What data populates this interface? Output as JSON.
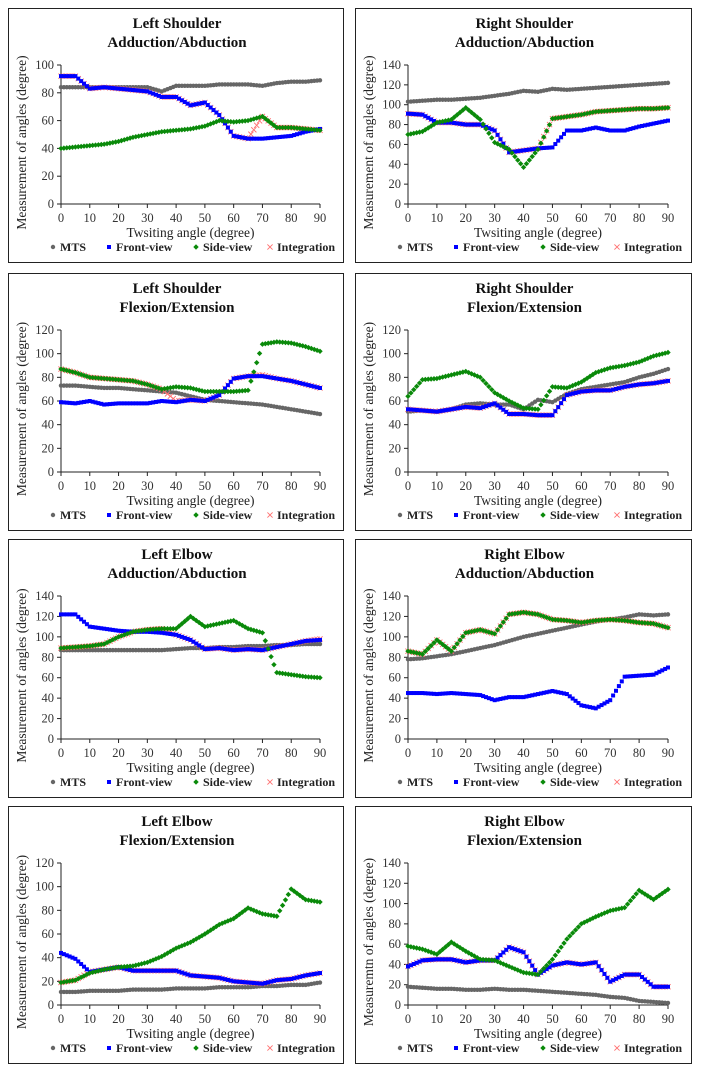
{
  "chart_data": [
    {
      "type": "scatter",
      "title": [
        "Left Shoulder",
        "Adduction/Abduction"
      ],
      "xlabel": "Twsiting angle (degree)",
      "ylabel": "Measurement of angles (degree)",
      "xlim": [
        0,
        90
      ],
      "ylim": [
        0,
        100
      ],
      "ystep": 20,
      "legend": "bottom",
      "x": [
        0,
        5,
        10,
        15,
        20,
        25,
        30,
        35,
        40,
        45,
        50,
        55,
        60,
        65,
        70,
        75,
        80,
        85,
        90
      ],
      "series": [
        {
          "name": "MTS",
          "values": [
            84,
            84,
            84,
            84,
            84,
            84,
            84,
            81,
            85,
            85,
            85,
            86,
            86,
            86,
            85,
            87,
            88,
            88,
            89
          ]
        },
        {
          "name": "Front-view",
          "values": [
            92,
            92,
            83,
            84,
            83,
            82,
            81,
            77,
            77,
            71,
            73,
            64,
            49,
            47,
            47,
            48,
            49,
            52,
            54
          ]
        },
        {
          "name": "Side-view",
          "values": [
            40,
            41,
            42,
            43,
            45,
            48,
            50,
            52,
            53,
            54,
            56,
            60,
            59,
            60,
            63,
            55,
            55,
            54,
            53
          ]
        },
        {
          "name": "Integration",
          "values": [
            92,
            92,
            83,
            84,
            83,
            82,
            81,
            77,
            77,
            71,
            73,
            64,
            49,
            47,
            63,
            55,
            55,
            54,
            53
          ]
        }
      ]
    },
    {
      "type": "scatter",
      "title": [
        "Right Shoulder",
        "Adduction/Abduction"
      ],
      "xlabel": "Twsiting angle (degree)",
      "ylabel": "Measurement of angles (degree)",
      "xlim": [
        0,
        90
      ],
      "ylim": [
        0,
        140
      ],
      "ystep": 20,
      "legend": "bottom",
      "x": [
        0,
        5,
        10,
        15,
        20,
        25,
        30,
        35,
        40,
        45,
        50,
        55,
        60,
        65,
        70,
        75,
        80,
        85,
        90
      ],
      "series": [
        {
          "name": "MTS",
          "values": [
            103,
            104,
            105,
            105,
            106,
            107,
            109,
            111,
            114,
            113,
            116,
            115,
            116,
            117,
            118,
            119,
            120,
            121,
            122
          ]
        },
        {
          "name": "Front-view",
          "values": [
            91,
            90,
            82,
            82,
            80,
            80,
            74,
            52,
            54,
            56,
            57,
            74,
            74,
            77,
            74,
            74,
            78,
            81,
            84
          ]
        },
        {
          "name": "Side-view",
          "values": [
            70,
            73,
            82,
            85,
            97,
            85,
            62,
            55,
            37,
            55,
            86,
            88,
            90,
            93,
            94,
            95,
            96,
            96,
            97
          ]
        },
        {
          "name": "Integration",
          "values": [
            91,
            90,
            82,
            82,
            80,
            80,
            74,
            52,
            54,
            56,
            86,
            88,
            90,
            93,
            94,
            95,
            96,
            96,
            97
          ]
        }
      ]
    },
    {
      "type": "scatter",
      "title": [
        "Left Shoulder",
        "Flexion/Extension"
      ],
      "xlabel": "Twsiting angle (degree)",
      "ylabel": "Measurement of angles (degree)",
      "xlim": [
        0,
        90
      ],
      "ylim": [
        0,
        120
      ],
      "ystep": 20,
      "legend": "bottom",
      "x": [
        0,
        5,
        10,
        15,
        20,
        25,
        30,
        35,
        40,
        45,
        50,
        55,
        60,
        65,
        70,
        75,
        80,
        85,
        90
      ],
      "series": [
        {
          "name": "MTS",
          "values": [
            73,
            73,
            72,
            71,
            71,
            70,
            69,
            68,
            67,
            64,
            61,
            60,
            59,
            58,
            57,
            55,
            53,
            51,
            49
          ]
        },
        {
          "name": "Front-view",
          "values": [
            59,
            58,
            60,
            57,
            58,
            58,
            58,
            60,
            59,
            61,
            60,
            65,
            79,
            81,
            81,
            79,
            77,
            74,
            71
          ]
        },
        {
          "name": "Side-view",
          "values": [
            87,
            84,
            80,
            79,
            78,
            77,
            74,
            70,
            72,
            71,
            68,
            68,
            68,
            69,
            108,
            110,
            109,
            106,
            102
          ]
        },
        {
          "name": "Integration",
          "values": [
            87,
            84,
            80,
            79,
            78,
            77,
            74,
            70,
            60,
            61,
            60,
            65,
            79,
            81,
            82,
            79,
            77,
            74,
            71
          ]
        }
      ]
    },
    {
      "type": "scatter",
      "title": [
        "Right Shoulder",
        "Flexion/Extension"
      ],
      "xlabel": "Twsiting angle (degree)",
      "ylabel": "Measurement of angles (degree)",
      "xlim": [
        0,
        90
      ],
      "ylim": [
        0,
        120
      ],
      "ystep": 20,
      "legend": "bottom",
      "x": [
        0,
        5,
        10,
        15,
        20,
        25,
        30,
        35,
        40,
        45,
        50,
        55,
        60,
        65,
        70,
        75,
        80,
        85,
        90
      ],
      "series": [
        {
          "name": "MTS",
          "values": [
            51,
            52,
            51,
            53,
            57,
            58,
            57,
            57,
            53,
            61,
            59,
            66,
            70,
            72,
            74,
            76,
            80,
            83,
            87
          ]
        },
        {
          "name": "Front-view",
          "values": [
            53,
            52,
            51,
            53,
            55,
            54,
            58,
            49,
            49,
            48,
            48,
            65,
            68,
            69,
            69,
            72,
            74,
            75,
            77
          ]
        },
        {
          "name": "Side-view",
          "values": [
            64,
            78,
            79,
            82,
            85,
            80,
            67,
            60,
            54,
            53,
            72,
            71,
            76,
            84,
            88,
            90,
            93,
            98,
            101
          ]
        },
        {
          "name": "Integration",
          "values": [
            53,
            52,
            51,
            53,
            55,
            54,
            58,
            49,
            49,
            48,
            48,
            65,
            68,
            69,
            69,
            72,
            74,
            75,
            77
          ]
        }
      ]
    },
    {
      "type": "scatter",
      "title": [
        "Left Elbow",
        "Adduction/Abduction"
      ],
      "xlabel": "Twsiting angle (degree)",
      "ylabel": "Measurement of angles (degree)",
      "xlim": [
        0,
        90
      ],
      "ylim": [
        0,
        140
      ],
      "ystep": 20,
      "legend": "bottom",
      "x": [
        0,
        5,
        10,
        15,
        20,
        25,
        30,
        35,
        40,
        45,
        50,
        55,
        60,
        65,
        70,
        75,
        80,
        85,
        90
      ],
      "series": [
        {
          "name": "MTS",
          "values": [
            87,
            87,
            87,
            87,
            87,
            87,
            87,
            87,
            88,
            89,
            89,
            90,
            90,
            91,
            91,
            92,
            92,
            93,
            93
          ]
        },
        {
          "name": "Front-view",
          "values": [
            122,
            122,
            110,
            108,
            106,
            105,
            105,
            104,
            102,
            97,
            88,
            89,
            87,
            88,
            87,
            90,
            93,
            96,
            97
          ]
        },
        {
          "name": "Side-view",
          "values": [
            89,
            90,
            91,
            93,
            100,
            105,
            107,
            108,
            108,
            120,
            110,
            113,
            116,
            108,
            104,
            65,
            63,
            61,
            60
          ]
        },
        {
          "name": "Integration",
          "values": [
            89,
            90,
            91,
            93,
            100,
            105,
            107,
            108,
            102,
            97,
            88,
            89,
            87,
            88,
            87,
            90,
            93,
            96,
            98
          ]
        }
      ]
    },
    {
      "type": "scatter",
      "title": [
        "Right Elbow",
        "Adduction/Abduction"
      ],
      "xlabel": "Twsiting angle (degree)",
      "ylabel": "Measurement of angles (degree)",
      "xlim": [
        0,
        90
      ],
      "ylim": [
        0,
        140
      ],
      "ystep": 20,
      "legend": "bottom",
      "x": [
        0,
        5,
        10,
        15,
        20,
        25,
        30,
        35,
        40,
        45,
        50,
        55,
        60,
        65,
        70,
        75,
        80,
        85,
        90
      ],
      "series": [
        {
          "name": "MTS",
          "values": [
            78,
            79,
            81,
            83,
            86,
            89,
            92,
            96,
            100,
            103,
            106,
            109,
            112,
            115,
            117,
            119,
            122,
            121,
            122
          ]
        },
        {
          "name": "Front-view",
          "values": [
            45,
            45,
            44,
            45,
            44,
            43,
            38,
            41,
            41,
            44,
            47,
            44,
            33,
            30,
            38,
            61,
            62,
            63,
            70
          ]
        },
        {
          "name": "Side-view",
          "values": [
            86,
            83,
            97,
            86,
            104,
            107,
            103,
            122,
            124,
            122,
            117,
            116,
            114,
            116,
            117,
            116,
            114,
            113,
            109
          ]
        },
        {
          "name": "Integration",
          "values": [
            86,
            83,
            97,
            86,
            104,
            107,
            103,
            122,
            124,
            122,
            117,
            116,
            114,
            116,
            117,
            116,
            114,
            113,
            109
          ]
        }
      ]
    },
    {
      "type": "scatter",
      "title": [
        "Left Elbow",
        "Flexion/Extension"
      ],
      "xlabel": "Twsiting angle (degree)",
      "ylabel": "Measurement of angles (degree)",
      "xlim": [
        0,
        90
      ],
      "ylim": [
        0,
        120
      ],
      "ystep": 20,
      "legend": "bottom",
      "x": [
        0,
        5,
        10,
        15,
        20,
        25,
        30,
        35,
        40,
        45,
        50,
        55,
        60,
        65,
        70,
        75,
        80,
        85,
        90
      ],
      "series": [
        {
          "name": "MTS",
          "values": [
            11,
            11,
            12,
            12,
            12,
            13,
            13,
            13,
            14,
            14,
            14,
            15,
            15,
            15,
            16,
            16,
            17,
            17,
            19
          ]
        },
        {
          "name": "Front-view",
          "values": [
            44,
            39,
            28,
            30,
            32,
            29,
            29,
            29,
            29,
            25,
            24,
            23,
            20,
            19,
            18,
            21,
            22,
            25,
            27
          ]
        },
        {
          "name": "Side-view",
          "values": [
            19,
            21,
            27,
            30,
            32,
            33,
            36,
            41,
            48,
            53,
            60,
            68,
            73,
            82,
            77,
            75,
            98,
            89,
            87
          ]
        },
        {
          "name": "Integration",
          "values": [
            19,
            21,
            28,
            30,
            32,
            29,
            29,
            29,
            29,
            25,
            24,
            23,
            20,
            19,
            18,
            21,
            22,
            25,
            27
          ]
        }
      ]
    },
    {
      "type": "scatter",
      "title": [
        "Right Elbow",
        "Flexion/Extension"
      ],
      "xlabel": "Twsiting angle (degree)",
      "ylabel": "Measuremtn of angles (degree)",
      "xlim": [
        0,
        90
      ],
      "ylim": [
        0,
        140
      ],
      "ystep": 20,
      "legend": "bottom",
      "x": [
        0,
        5,
        10,
        15,
        20,
        25,
        30,
        35,
        40,
        45,
        50,
        55,
        60,
        65,
        70,
        75,
        80,
        85,
        90
      ],
      "series": [
        {
          "name": "MTS",
          "values": [
            18,
            17,
            16,
            16,
            15,
            15,
            16,
            15,
            15,
            14,
            13,
            12,
            11,
            10,
            8,
            7,
            4,
            3,
            2
          ]
        },
        {
          "name": "Front-view",
          "values": [
            38,
            44,
            45,
            45,
            42,
            44,
            44,
            57,
            52,
            30,
            39,
            42,
            40,
            42,
            23,
            30,
            30,
            18,
            18
          ]
        },
        {
          "name": "Side-view",
          "values": [
            58,
            55,
            50,
            62,
            53,
            45,
            44,
            38,
            32,
            30,
            45,
            65,
            80,
            87,
            93,
            96,
            113,
            104,
            114
          ]
        },
        {
          "name": "Integration",
          "values": [
            38,
            44,
            45,
            45,
            42,
            44,
            44,
            57,
            52,
            30,
            39,
            42,
            40,
            42,
            23,
            30,
            30,
            18,
            18
          ]
        }
      ]
    }
  ],
  "series_colors": {
    "MTS": "#666666",
    "Front-view": "#0000ff",
    "Side-view": "#0a8a0a",
    "Integration": "#ff7070"
  }
}
